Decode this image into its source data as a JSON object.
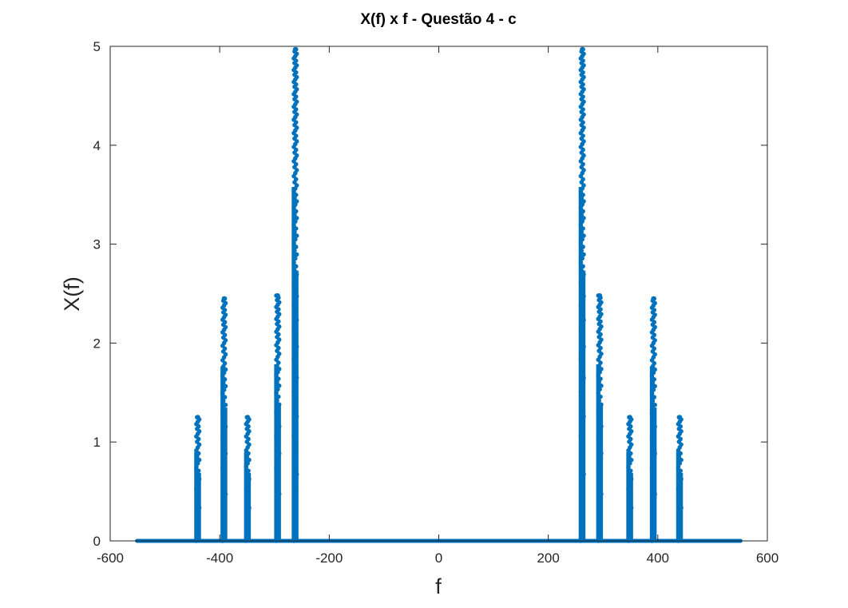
{
  "chart_data": {
    "type": "scatter",
    "title": "X(f) x f - Questão 4 - c",
    "xlabel": "f",
    "ylabel": "X(f)",
    "xlim": [
      -600,
      600
    ],
    "ylim": [
      0,
      5
    ],
    "xticks": [
      "-600",
      "-400",
      "-200",
      "0",
      "200",
      "400",
      "600"
    ],
    "yticks": [
      "0",
      "1",
      "2",
      "3",
      "4",
      "5"
    ],
    "grid": false,
    "legend": "none",
    "marker_color": "#0072bd",
    "baseline_range": [
      -551,
      551
    ],
    "series": [
      {
        "peaks": [
          {
            "f": -440,
            "max": 1.25
          },
          {
            "f": -392,
            "max": 2.45
          },
          {
            "f": -349,
            "max": 1.25
          },
          {
            "f": -294,
            "max": 2.48
          },
          {
            "f": -262,
            "max": 4.97
          },
          {
            "f": 262,
            "max": 4.97
          },
          {
            "f": 294,
            "max": 2.48
          },
          {
            "f": 349,
            "max": 1.25
          },
          {
            "f": 392,
            "max": 2.45
          },
          {
            "f": 440,
            "max": 1.25
          }
        ]
      }
    ]
  }
}
